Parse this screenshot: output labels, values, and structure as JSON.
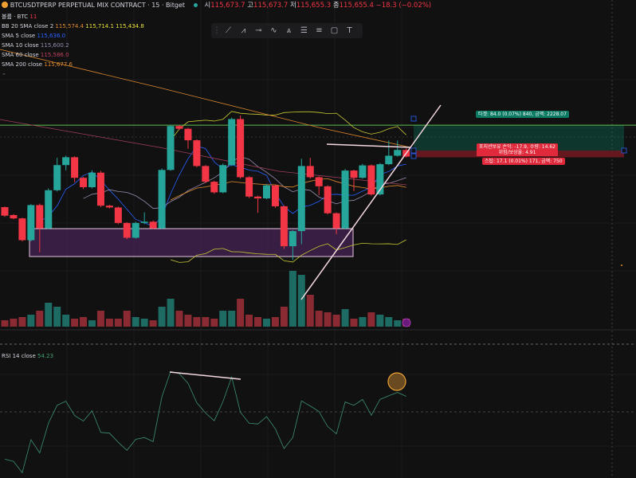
{
  "header": {
    "symbol": "BTCUSDTPERP PERPETUAL MIX CONTRACT · 15 · Bitget",
    "ohlc": {
      "o_label": "시",
      "o": "115,673.7",
      "h_label": "고",
      "h": "115,673.7",
      "l_label": "저",
      "l": "115,655.3",
      "c_label": "종",
      "c": "115,655.4",
      "change": "−18.3 (−0.02%)"
    }
  },
  "indicators": {
    "volume": {
      "label": "볼륨 · BTC",
      "value": "11"
    },
    "bb": {
      "label": "BB 20 SMA close 2",
      "basis": "115,574.4",
      "upper": "115,714.1",
      "lower": "115,434.8"
    },
    "sma5": {
      "label": "SMA 5 close",
      "value": "115,636.0"
    },
    "sma10": {
      "label": "SMA 10 close",
      "value": "115,600.2"
    },
    "sma60": {
      "label": "SMA 60 close",
      "value": "115,586.0"
    },
    "sma200": {
      "label": "SMA 200 close",
      "value": "115,677.6"
    },
    "rsi": {
      "label": "RSI 14 close",
      "value": "54.23"
    }
  },
  "toolbar": {
    "tools": [
      "drag-handle",
      "trend-line-icon",
      "pattern-icon",
      "horizontal-ray-icon",
      "path-icon",
      "long-short-icon",
      "fib-icon",
      "settings-lines-icon",
      "rectangle-icon",
      "text-icon"
    ]
  },
  "position": {
    "target_label": "타겟: 84.0 (0.07%) 840, 금액: 2228.07",
    "pnl_label": "포지션보유 손익: -17.9, 수량: 14.62",
    "rr_label": "위험/보상율: 4.91",
    "stop_label": "스탑: 17.1 (0.01%) 171, 금액: 750"
  },
  "colors": {
    "up": "#26a69a",
    "down": "#f23645",
    "background": "#111112",
    "sma5": "#2962ff",
    "bb": "#c8c832",
    "sma200": "#e08a2c",
    "sma60": "#a0405a",
    "rsi": "#3d8f73",
    "target": "#0b7a62",
    "stop": "#e0293b"
  },
  "chart_data": {
    "type": "candlestick",
    "entry": 115655,
    "target": 115739,
    "stop": 115638,
    "candles": [
      [
        115468,
        115470,
        115436,
        115440
      ],
      [
        115442,
        115445,
        115428,
        115431
      ],
      [
        115431,
        115433,
        115355,
        115359
      ],
      [
        115359,
        115478,
        115355,
        115475
      ],
      [
        115475,
        115480,
        115319,
        115398
      ],
      [
        115398,
        115530,
        115395,
        115524
      ],
      [
        115524,
        115631,
        115520,
        115607
      ],
      [
        115607,
        115638,
        115590,
        115633
      ],
      [
        115633,
        115636,
        115550,
        115565
      ],
      [
        115565,
        115568,
        115528,
        115534
      ],
      [
        115534,
        115590,
        115530,
        115582
      ],
      [
        115582,
        115588,
        115468,
        115473
      ],
      [
        115473,
        115476,
        115464,
        115467
      ],
      [
        115467,
        115470,
        115412,
        115416
      ],
      [
        115416,
        115418,
        115362,
        115367
      ],
      [
        115367,
        115420,
        115364,
        115416
      ],
      [
        115416,
        115451,
        115412,
        115420
      ],
      [
        115420,
        115424,
        115395,
        115398
      ],
      [
        115398,
        115596,
        115395,
        115591
      ],
      [
        115591,
        115740,
        115588,
        115736
      ],
      [
        115736,
        115740,
        115723,
        115727
      ],
      [
        115727,
        115730,
        115661,
        115689
      ],
      [
        115689,
        115692,
        115600,
        115604
      ],
      [
        115604,
        115607,
        115548,
        115552
      ],
      [
        115552,
        115555,
        115512,
        115517
      ],
      [
        115517,
        115612,
        115514,
        115607
      ],
      [
        115607,
        115764,
        115604,
        115759
      ],
      [
        115759,
        115771,
        115562,
        115567
      ],
      [
        115567,
        115570,
        115498,
        115503
      ],
      [
        115503,
        115506,
        115449,
        115497
      ],
      [
        115497,
        115545,
        115494,
        115540
      ],
      [
        115540,
        115543,
        115466,
        115471
      ],
      [
        115471,
        115474,
        115330,
        115339
      ],
      [
        115339,
        115392,
        115293,
        115389
      ],
      [
        115389,
        115628,
        115346,
        115604
      ],
      [
        115604,
        115631,
        115562,
        115567
      ],
      [
        115567,
        115570,
        115508,
        115537
      ],
      [
        115537,
        115540,
        115444,
        115448
      ],
      [
        115448,
        115451,
        115379,
        115398
      ],
      [
        115398,
        115594,
        115395,
        115589
      ],
      [
        115589,
        115592,
        115521,
        115565
      ],
      [
        115565,
        115611,
        115562,
        115606
      ],
      [
        115606,
        115609,
        115506,
        115510
      ],
      [
        115510,
        115614,
        115507,
        115610
      ],
      [
        115610,
        115688,
        115607,
        115638
      ],
      [
        115638,
        115688,
        115635,
        115657
      ],
      [
        115657,
        115662,
        115632,
        115635
      ]
    ],
    "volume": [
      8,
      10,
      12,
      15,
      20,
      30,
      25,
      15,
      10,
      12,
      8,
      20,
      10,
      10,
      20,
      12,
      10,
      8,
      25,
      35,
      20,
      15,
      12,
      12,
      10,
      20,
      20,
      35,
      15,
      12,
      10,
      12,
      25,
      70,
      65,
      40,
      20,
      18,
      15,
      22,
      10,
      12,
      18,
      15,
      12,
      8,
      10
    ],
    "rsi": [
      37.1,
      36.5,
      33.4,
      42.4,
      38.8,
      46.9,
      51.8,
      52.9,
      49,
      47.5,
      50.3,
      44.4,
      44.2,
      41.7,
      39.5,
      42.5,
      43,
      41.9,
      54.1,
      61,
      60.4,
      57.8,
      52.5,
      49.7,
      47.6,
      52.8,
      59.5,
      49.9,
      46.9,
      46.7,
      48.7,
      45.4,
      40,
      43,
      53,
      51.6,
      50.1,
      46,
      44,
      52.7,
      51.8,
      53.4,
      49.1,
      53.4,
      54.4,
      55.3,
      54.23
    ]
  }
}
